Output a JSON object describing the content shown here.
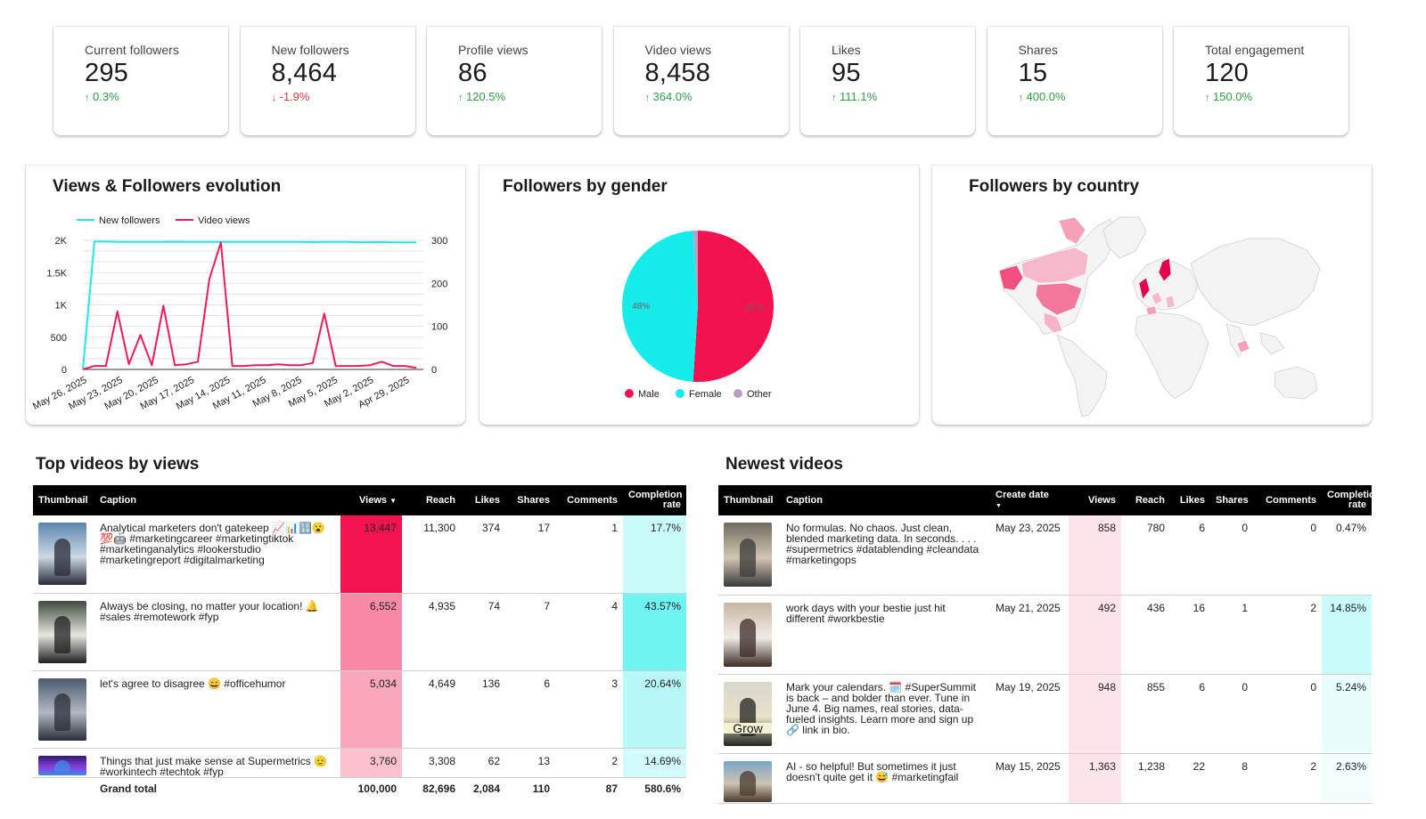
{
  "kpis": [
    {
      "label": "Current followers",
      "value": "295",
      "delta": "0.3%",
      "direction": "up"
    },
    {
      "label": "New followers",
      "value": "8,464",
      "delta": "-1.9%",
      "direction": "down"
    },
    {
      "label": "Profile views",
      "value": "86",
      "delta": "120.5%",
      "direction": "up"
    },
    {
      "label": "Video views",
      "value": "8,458",
      "delta": "364.0%",
      "direction": "up"
    },
    {
      "label": "Likes",
      "value": "95",
      "delta": "111.1%",
      "direction": "up"
    },
    {
      "label": "Shares",
      "value": "15",
      "delta": "400.0%",
      "direction": "up"
    },
    {
      "label": "Total engagement",
      "value": "120",
      "delta": "150.0%",
      "direction": "up"
    }
  ],
  "colors": {
    "up": "#2e9e45",
    "down": "#e03a3a",
    "followers_line": "#22e5f0",
    "views_line": "#ee1b5b",
    "male": "#f3114f",
    "female": "#13eceb",
    "other": "#b9a1c2"
  },
  "panels": {
    "evolution_title": "Views & Followers evolution",
    "gender_title": "Followers by gender",
    "country_title": "Followers by country"
  },
  "chart_data": [
    {
      "type": "line",
      "title": "Views & Followers evolution",
      "legend": [
        "New followers",
        "Video views"
      ],
      "legend_position": "top-left",
      "x_tick_labels": [
        "May 26, 2025",
        "May 23, 2025",
        "May 20, 2025",
        "May 17, 2025",
        "May 14, 2025",
        "May 11, 2025",
        "May 8, 2025",
        "May 5, 2025",
        "May 2, 2025",
        "Apr 29, 2025"
      ],
      "y_left_ticks": [
        "0",
        "500",
        "1K",
        "1.5K",
        "2K"
      ],
      "y_right_ticks": [
        "0",
        "100",
        "200",
        "300"
      ],
      "y_left_range": [
        0,
        2000
      ],
      "y_right_range": [
        0,
        300
      ],
      "series": [
        {
          "name": "New followers",
          "axis": "left",
          "values": [
            0,
            1980,
            1980,
            1975,
            1975,
            1975,
            1975,
            1975,
            1978,
            1975,
            1975,
            1975,
            1975,
            1975,
            1975,
            1975,
            1975,
            1975,
            1975,
            1975,
            1972,
            1975,
            1975,
            1975,
            1970,
            1972,
            1972,
            1970,
            1970,
            1968
          ]
        },
        {
          "name": "Video views",
          "axis": "right",
          "values": [
            0,
            8,
            8,
            135,
            12,
            80,
            10,
            148,
            10,
            12,
            18,
            210,
            295,
            8,
            8,
            10,
            10,
            12,
            10,
            10,
            15,
            130,
            8,
            8,
            8,
            10,
            18,
            8,
            8,
            4
          ]
        }
      ],
      "grid": true
    },
    {
      "type": "pie",
      "title": "Followers by gender",
      "legend": [
        "Male",
        "Female",
        "Other"
      ],
      "legend_position": "bottom",
      "slices": [
        {
          "name": "Male",
          "value": 51,
          "label": "51%"
        },
        {
          "name": "Female",
          "value": 48,
          "label": "48%"
        },
        {
          "name": "Other",
          "value": 1,
          "label": ""
        }
      ]
    }
  ],
  "top_videos": {
    "title": "Top videos by views",
    "headers": {
      "thumbnail": "Thumbnail",
      "caption": "Caption",
      "views": "Views",
      "reach": "Reach",
      "likes": "Likes",
      "shares": "Shares",
      "comments": "Comments",
      "completion": "Completion rate"
    },
    "rows": [
      {
        "caption": "Analytical marketers don't gatekeep 📈📊🔢😮💯🤖 #marketingcareer #marketingtiktok #marketinganalytics #lookerstudio #marketingreport #digitalmarketing",
        "views": "13,447",
        "reach": "11,300",
        "likes": "374",
        "shares": "17",
        "comments": "1",
        "completion": "17.7%",
        "views_bg": "#f3134f",
        "comp_bg": "#c9fbfb"
      },
      {
        "caption": "Always be closing, no matter your location! 🔔 #sales #remotework #fyp",
        "views": "6,552",
        "reach": "4,935",
        "likes": "74",
        "shares": "7",
        "comments": "4",
        "completion": "43.57%",
        "views_bg": "#f98aa6",
        "comp_bg": "#6ff4f1"
      },
      {
        "caption": "let's agree to disagree 😄 #officehumor",
        "views": "5,034",
        "reach": "4,649",
        "likes": "136",
        "shares": "6",
        "comments": "3",
        "completion": "20.64%",
        "views_bg": "#faa6bb",
        "comp_bg": "#b8f8f8"
      },
      {
        "caption": "Things that just make sense at Supermetrics 🫡 #workintech #techtok #fyp",
        "views": "3,760",
        "reach": "3,308",
        "likes": "62",
        "shares": "13",
        "comments": "2",
        "completion": "14.69%",
        "views_bg": "#fbc1cf",
        "comp_bg": "#d3fbfb"
      }
    ],
    "total": {
      "label": "Grand total",
      "views": "100,000",
      "reach": "82,696",
      "likes": "2,084",
      "shares": "110",
      "comments": "87",
      "completion": "580.6%"
    }
  },
  "newest_videos": {
    "title": "Newest videos",
    "headers": {
      "thumbnail": "Thumbnail",
      "caption": "Caption",
      "create_date": "Create date",
      "views": "Views",
      "reach": "Reach",
      "likes": "Likes",
      "shares": "Shares",
      "comments": "Comments",
      "completion": "Completion rate"
    },
    "rows": [
      {
        "caption": "No formulas. No chaos. Just clean, blended marketing data. In seconds. . . . #supermetrics #datablending #cleandata #marketingops",
        "date": "May 23, 2025",
        "views": "858",
        "reach": "780",
        "likes": "6",
        "shares": "0",
        "comments": "0",
        "completion": "0.47%",
        "comp_bg": "#ffffff",
        "thumb_text": ""
      },
      {
        "caption": "work days with your bestie just hit different #workbestie",
        "date": "May 21, 2025",
        "views": "492",
        "reach": "436",
        "likes": "16",
        "shares": "1",
        "comments": "2",
        "completion": "14.85%",
        "comp_bg": "#c9fbfb",
        "thumb_text": ""
      },
      {
        "caption": "Mark your calendars. 🗓️ #SuperSummit is back – and bolder than ever. Tune in June 4. Big names, real stories, data-fueled insights. Learn more and sign up 🔗 link in bio.",
        "date": "May 19, 2025",
        "views": "948",
        "reach": "855",
        "likes": "6",
        "shares": "0",
        "comments": "0",
        "completion": "5.24%",
        "comp_bg": "#eafdfd",
        "thumb_text": "Grow"
      },
      {
        "caption": "AI - so helpful! But sometimes it just doesn't quite get it 😅 #marketingfail",
        "date": "May 15, 2025",
        "views": "1,363",
        "reach": "1,238",
        "likes": "22",
        "shares": "8",
        "comments": "2",
        "completion": "2.63%",
        "comp_bg": "#f3fefe",
        "thumb_text": ""
      }
    ]
  }
}
